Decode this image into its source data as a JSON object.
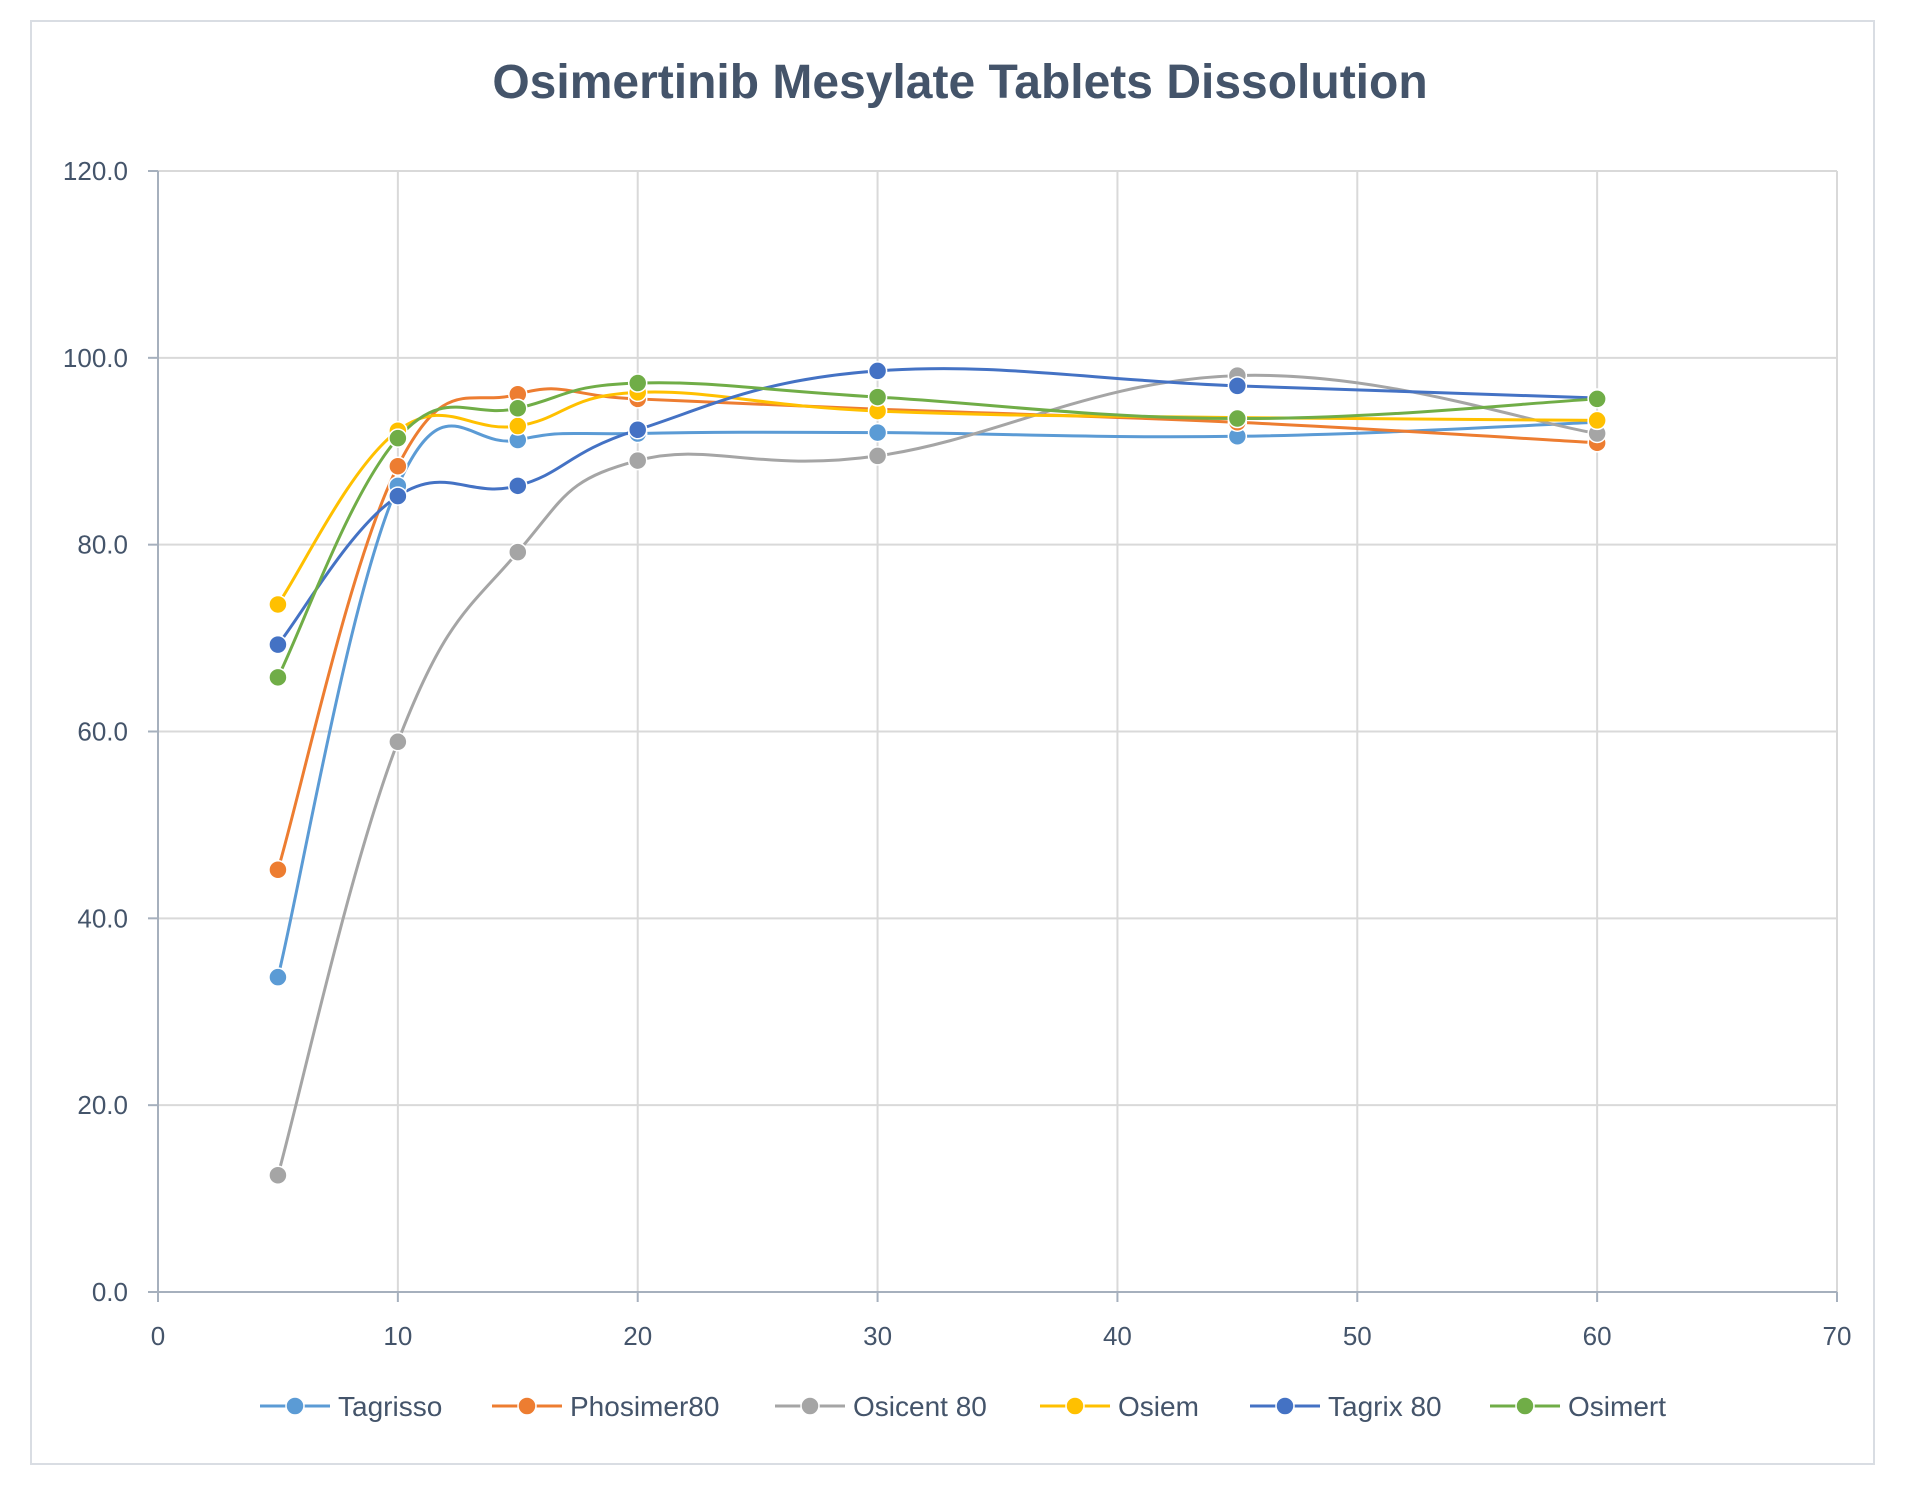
{
  "chart_data": {
    "type": "line",
    "title": "Osimertinib Mesylate Tablets  Dissolution",
    "xlabel": "",
    "ylabel": "",
    "xlim": [
      0,
      70
    ],
    "ylim": [
      0,
      120
    ],
    "x_ticks": [
      "0",
      "10",
      "20",
      "30",
      "40",
      "50",
      "60",
      "70"
    ],
    "y_ticks": [
      "0.0",
      "20.0",
      "40.0",
      "60.0",
      "80.0",
      "100.0",
      "120.0"
    ],
    "grid": true,
    "legend_position": "bottom",
    "x": [
      5,
      10,
      15,
      20,
      30,
      45,
      60
    ],
    "series": [
      {
        "name": "Tagrisso",
        "color": "#5b9bd5",
        "values": [
          33.7,
          86.3,
          91.2,
          91.9,
          92.0,
          91.6,
          93.1
        ]
      },
      {
        "name": "Phosimer80",
        "color": "#ed7d31",
        "values": [
          45.2,
          88.4,
          96.1,
          95.6,
          94.5,
          93.1,
          90.9
        ]
      },
      {
        "name": "Osicent 80",
        "color": "#a5a5a5",
        "values": [
          12.5,
          58.9,
          79.2,
          89.0,
          89.5,
          98.1,
          91.9
        ]
      },
      {
        "name": "Osiem",
        "color": "#ffc000",
        "values": [
          73.6,
          92.2,
          92.7,
          96.3,
          94.3,
          93.6,
          93.3
        ]
      },
      {
        "name": "Tagrix 80",
        "color": "#4472c4",
        "values": [
          69.3,
          85.2,
          86.3,
          92.3,
          98.6,
          97.0,
          95.7
        ]
      },
      {
        "name": "Osimert",
        "color": "#70ad47",
        "values": [
          65.8,
          91.4,
          94.6,
          97.3,
          95.8,
          93.5,
          95.6
        ]
      }
    ]
  }
}
